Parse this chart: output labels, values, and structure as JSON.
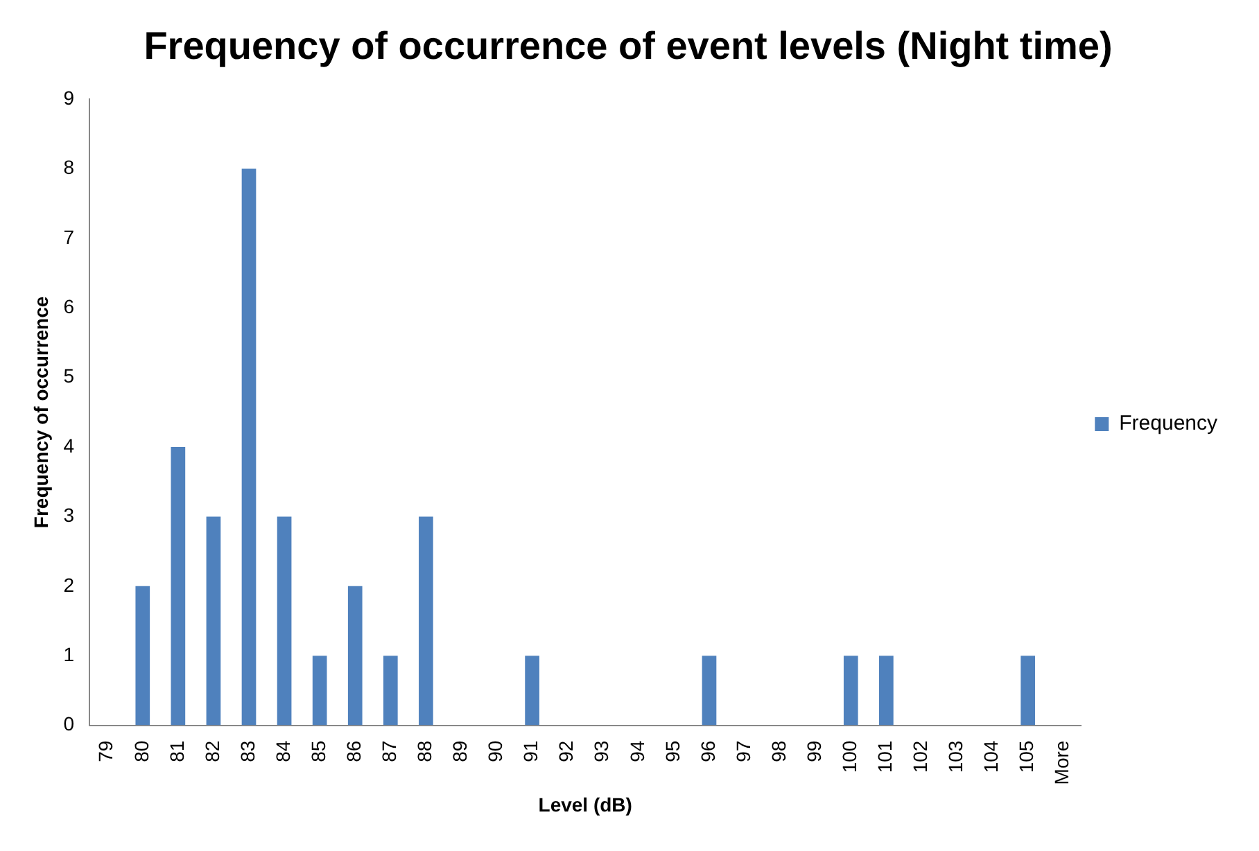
{
  "chart_data": {
    "type": "bar",
    "title": "Frequency of occurrence of event levels (Night time)",
    "xlabel": "Level (dB)",
    "ylabel": "Frequency of occurrence",
    "categories": [
      "79",
      "80",
      "81",
      "82",
      "83",
      "84",
      "85",
      "86",
      "87",
      "88",
      "89",
      "90",
      "91",
      "92",
      "93",
      "94",
      "95",
      "96",
      "97",
      "98",
      "99",
      "100",
      "101",
      "102",
      "103",
      "104",
      "105",
      "More"
    ],
    "series": [
      {
        "name": "Frequency",
        "color": "#4f81bd",
        "values": [
          0,
          2,
          4,
          3,
          8,
          3,
          1,
          2,
          1,
          3,
          0,
          0,
          1,
          0,
          0,
          0,
          0,
          1,
          0,
          0,
          0,
          1,
          1,
          0,
          0,
          0,
          1,
          0
        ]
      }
    ],
    "ylim": [
      0,
      9
    ],
    "yticks": [
      0,
      1,
      2,
      3,
      4,
      5,
      6,
      7,
      8,
      9
    ],
    "grid": false,
    "legend": "right"
  }
}
